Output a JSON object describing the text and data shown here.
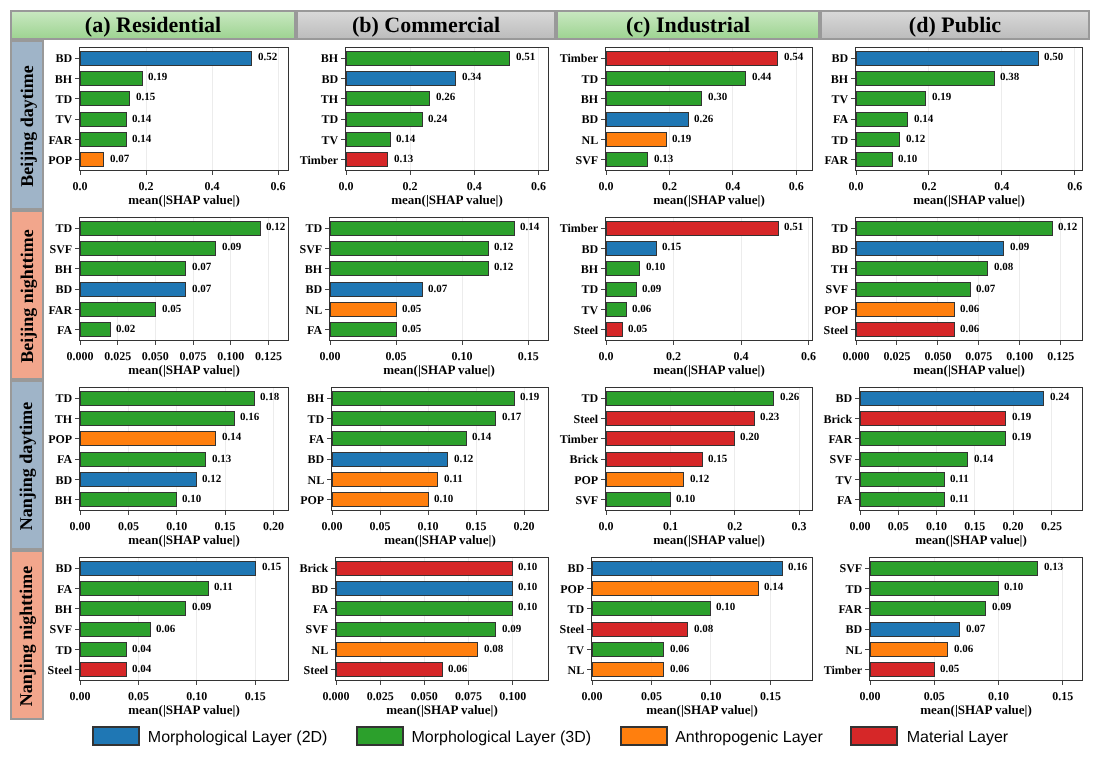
{
  "chart_data": [
    {
      "type": "bar",
      "orientation": "horizontal",
      "stacked": true,
      "title": "(a) Residential",
      "ylabel": "Beijing daytime",
      "xlabel": "mean(|SHAP value|)",
      "categories": [
        "BD",
        "BH",
        "TD",
        "TV",
        "FAR",
        "POP"
      ],
      "series": [
        {
          "color": "#1f77b4",
          "values": [
            0.52,
            null,
            null,
            null,
            null,
            null
          ],
          "value_labels": [
            "0.52",
            null,
            null,
            null,
            null,
            null
          ]
        },
        {
          "color": "#2ca02c",
          "values": [
            null,
            0.19,
            0.15,
            0.14,
            0.14,
            null
          ],
          "value_labels": [
            null,
            "0.19",
            "0.15",
            "0.14",
            "0.14",
            null
          ]
        },
        {
          "color": "#ff7f0e",
          "values": [
            null,
            null,
            null,
            null,
            null,
            0.07
          ],
          "value_labels": [
            null,
            null,
            null,
            null,
            null,
            "0.07"
          ]
        }
      ],
      "xlim": [
        0,
        0.63
      ],
      "xticks": [
        {
          "value": 0,
          "label": "0.0"
        },
        {
          "value": 0.2,
          "label": "0.2"
        },
        {
          "value": 0.4,
          "label": "0.4"
        },
        {
          "value": 0.6,
          "label": "0.6"
        }
      ],
      "grid": "x"
    },
    {
      "type": "bar",
      "orientation": "horizontal",
      "stacked": true,
      "title": "(b) Commercial",
      "xlabel": "mean(|SHAP value|)",
      "categories": [
        "BH",
        "BD",
        "TH",
        "TD",
        "TV",
        "Timber"
      ],
      "series": [
        {
          "color": "#1f77b4",
          "values": [
            null,
            0.34,
            null,
            null,
            null,
            null
          ],
          "value_labels": [
            null,
            "0.34",
            null,
            null,
            null,
            null
          ]
        },
        {
          "color": "#2ca02c",
          "values": [
            0.51,
            null,
            0.26,
            0.24,
            0.14,
            null
          ],
          "value_labels": [
            "0.51",
            null,
            "0.26",
            "0.24",
            "0.14",
            null
          ]
        },
        {
          "color": "#d62728",
          "values": [
            null,
            null,
            null,
            null,
            null,
            0.13
          ],
          "value_labels": [
            null,
            null,
            null,
            null,
            null,
            "0.13"
          ]
        }
      ],
      "xlim": [
        0,
        0.63
      ],
      "xticks": [
        {
          "value": 0,
          "label": "0.0"
        },
        {
          "value": 0.2,
          "label": "0.2"
        },
        {
          "value": 0.4,
          "label": "0.4"
        },
        {
          "value": 0.6,
          "label": "0.6"
        }
      ],
      "grid": "x"
    },
    {
      "type": "bar",
      "orientation": "horizontal",
      "stacked": true,
      "title": "(c) Industrial",
      "xlabel": "mean(|SHAP value|)",
      "categories": [
        "Timber",
        "TD",
        "BH",
        "BD",
        "NL",
        "SVF"
      ],
      "series": [
        {
          "color": "#1f77b4",
          "values": [
            null,
            null,
            null,
            0.26,
            null,
            null
          ],
          "value_labels": [
            null,
            null,
            null,
            "0.26",
            null,
            null
          ]
        },
        {
          "color": "#2ca02c",
          "values": [
            null,
            0.44,
            0.3,
            null,
            null,
            0.13
          ],
          "value_labels": [
            null,
            "0.44",
            "0.30",
            null,
            null,
            "0.13"
          ]
        },
        {
          "color": "#ff7f0e",
          "values": [
            null,
            null,
            null,
            null,
            0.19,
            null
          ],
          "value_labels": [
            null,
            null,
            null,
            null,
            "0.19",
            null
          ]
        },
        {
          "color": "#d62728",
          "values": [
            0.54,
            null,
            null,
            null,
            null,
            null
          ],
          "value_labels": [
            "0.54",
            null,
            null,
            null,
            null,
            null
          ]
        }
      ],
      "xlim": [
        0,
        0.65
      ],
      "xticks": [
        {
          "value": 0,
          "label": "0.0"
        },
        {
          "value": 0.2,
          "label": "0.2"
        },
        {
          "value": 0.4,
          "label": "0.4"
        },
        {
          "value": 0.6,
          "label": "0.6"
        }
      ],
      "grid": "x"
    },
    {
      "type": "bar",
      "orientation": "horizontal",
      "stacked": true,
      "title": "(d) Public",
      "xlabel": "mean(|SHAP value|)",
      "categories": [
        "BD",
        "BH",
        "TV",
        "FA",
        "TD",
        "FAR"
      ],
      "series": [
        {
          "color": "#1f77b4",
          "values": [
            0.5,
            null,
            null,
            null,
            null,
            null
          ],
          "value_labels": [
            "0.50",
            null,
            null,
            null,
            null,
            null
          ]
        },
        {
          "color": "#2ca02c",
          "values": [
            null,
            0.38,
            0.19,
            0.14,
            0.12,
            0.1
          ],
          "value_labels": [
            null,
            "0.38",
            "0.19",
            "0.14",
            "0.12",
            "0.10"
          ]
        }
      ],
      "xlim": [
        0,
        0.62
      ],
      "xticks": [
        {
          "value": 0,
          "label": "0.0"
        },
        {
          "value": 0.2,
          "label": "0.2"
        },
        {
          "value": 0.4,
          "label": "0.4"
        },
        {
          "value": 0.6,
          "label": "0.6"
        }
      ],
      "grid": "x"
    },
    {
      "type": "bar",
      "orientation": "horizontal",
      "stacked": true,
      "ylabel": "Beijing nighttime",
      "xlabel": "mean(|SHAP value|)",
      "categories": [
        "TD",
        "SVF",
        "BH",
        "BD",
        "FAR",
        "FA"
      ],
      "series": [
        {
          "color": "#1f77b4",
          "values": [
            null,
            null,
            null,
            0.07,
            null,
            null
          ],
          "value_labels": [
            null,
            null,
            null,
            "0.07",
            null,
            null
          ]
        },
        {
          "color": "#2ca02c",
          "values": [
            0.12,
            0.09,
            0.07,
            null,
            0.05,
            0.02
          ],
          "value_labels": [
            "0.12",
            "0.09",
            "0.07",
            null,
            "0.05",
            "0.02"
          ]
        }
      ],
      "xlim": [
        0,
        0.138
      ],
      "xticks": [
        {
          "value": 0,
          "label": "0.000"
        },
        {
          "value": 0.025,
          "label": "0.025"
        },
        {
          "value": 0.05,
          "label": "0.050"
        },
        {
          "value": 0.075,
          "label": "0.075"
        },
        {
          "value": 0.1,
          "label": "0.100"
        },
        {
          "value": 0.125,
          "label": "0.125"
        }
      ],
      "grid": "x"
    },
    {
      "type": "bar",
      "orientation": "horizontal",
      "stacked": true,
      "xlabel": "mean(|SHAP value|)",
      "categories": [
        "TD",
        "SVF",
        "BH",
        "BD",
        "NL",
        "FA"
      ],
      "series": [
        {
          "color": "#1f77b4",
          "values": [
            null,
            null,
            null,
            0.07,
            null,
            null
          ],
          "value_labels": [
            null,
            null,
            null,
            "0.07",
            null,
            null
          ]
        },
        {
          "color": "#2ca02c",
          "values": [
            0.14,
            0.12,
            0.12,
            null,
            null,
            0.05
          ],
          "value_labels": [
            "0.14",
            "0.12",
            "0.12",
            null,
            null,
            "0.05"
          ]
        },
        {
          "color": "#ff7f0e",
          "values": [
            null,
            null,
            null,
            null,
            0.05,
            null
          ],
          "value_labels": [
            null,
            null,
            null,
            null,
            "0.05",
            null
          ]
        }
      ],
      "xlim": [
        0,
        0.165
      ],
      "xticks": [
        {
          "value": 0,
          "label": "0.00"
        },
        {
          "value": 0.05,
          "label": "0.05"
        },
        {
          "value": 0.1,
          "label": "0.10"
        },
        {
          "value": 0.15,
          "label": "0.15"
        }
      ],
      "grid": "x"
    },
    {
      "type": "bar",
      "orientation": "horizontal",
      "stacked": true,
      "xlabel": "mean(|SHAP value|)",
      "categories": [
        "Timber",
        "BD",
        "BH",
        "TD",
        "TV",
        "Steel"
      ],
      "series": [
        {
          "color": "#1f77b4",
          "values": [
            null,
            0.15,
            null,
            null,
            null,
            null
          ],
          "value_labels": [
            null,
            "0.15",
            null,
            null,
            null,
            null
          ]
        },
        {
          "color": "#2ca02c",
          "values": [
            null,
            null,
            0.1,
            0.09,
            0.06,
            null
          ],
          "value_labels": [
            null,
            null,
            "0.10",
            "0.09",
            "0.06",
            null
          ]
        },
        {
          "color": "#d62728",
          "values": [
            0.51,
            null,
            null,
            null,
            null,
            0.05
          ],
          "value_labels": [
            "0.51",
            null,
            null,
            null,
            null,
            "0.05"
          ]
        }
      ],
      "xlim": [
        0,
        0.61
      ],
      "xticks": [
        {
          "value": 0,
          "label": "0.0"
        },
        {
          "value": 0.2,
          "label": "0.2"
        },
        {
          "value": 0.4,
          "label": "0.4"
        },
        {
          "value": 0.6,
          "label": "0.6"
        }
      ],
      "grid": "x"
    },
    {
      "type": "bar",
      "orientation": "horizontal",
      "stacked": true,
      "xlabel": "mean(|SHAP value|)",
      "categories": [
        "TD",
        "BD",
        "TH",
        "SVF",
        "POP",
        "Steel"
      ],
      "series": [
        {
          "color": "#1f77b4",
          "values": [
            null,
            0.09,
            null,
            null,
            null,
            null
          ],
          "value_labels": [
            null,
            "0.09",
            null,
            null,
            null,
            null
          ]
        },
        {
          "color": "#2ca02c",
          "values": [
            0.12,
            null,
            0.08,
            0.07,
            null,
            null
          ],
          "value_labels": [
            "0.12",
            null,
            "0.08",
            "0.07",
            null,
            null
          ]
        },
        {
          "color": "#ff7f0e",
          "values": [
            null,
            null,
            null,
            null,
            0.06,
            null
          ],
          "value_labels": [
            null,
            null,
            null,
            null,
            "0.06",
            null
          ]
        },
        {
          "color": "#d62728",
          "values": [
            null,
            null,
            null,
            null,
            null,
            0.06
          ],
          "value_labels": [
            null,
            null,
            null,
            null,
            null,
            "0.06"
          ]
        }
      ],
      "xlim": [
        0,
        0.138
      ],
      "xticks": [
        {
          "value": 0,
          "label": "0.000"
        },
        {
          "value": 0.025,
          "label": "0.025"
        },
        {
          "value": 0.05,
          "label": "0.050"
        },
        {
          "value": 0.075,
          "label": "0.075"
        },
        {
          "value": 0.1,
          "label": "0.100"
        },
        {
          "value": 0.125,
          "label": "0.125"
        }
      ],
      "grid": "x"
    },
    {
      "type": "bar",
      "orientation": "horizontal",
      "stacked": true,
      "ylabel": "Nanjing daytime",
      "xlabel": "mean(|SHAP value|)",
      "categories": [
        "TD",
        "TH",
        "POP",
        "FA",
        "BD",
        "BH"
      ],
      "series": [
        {
          "color": "#1f77b4",
          "values": [
            null,
            null,
            null,
            null,
            0.12,
            null
          ],
          "value_labels": [
            null,
            null,
            null,
            null,
            "0.12",
            null
          ]
        },
        {
          "color": "#2ca02c",
          "values": [
            0.18,
            0.16,
            null,
            0.13,
            null,
            0.1
          ],
          "value_labels": [
            "0.18",
            "0.16",
            null,
            "0.13",
            null,
            "0.10"
          ]
        },
        {
          "color": "#ff7f0e",
          "values": [
            null,
            null,
            0.14,
            null,
            null,
            null
          ],
          "value_labels": [
            null,
            null,
            "0.14",
            null,
            null,
            null
          ]
        }
      ],
      "xlim": [
        0,
        0.215
      ],
      "xticks": [
        {
          "value": 0,
          "label": "0.00"
        },
        {
          "value": 0.05,
          "label": "0.05"
        },
        {
          "value": 0.1,
          "label": "0.10"
        },
        {
          "value": 0.15,
          "label": "0.15"
        },
        {
          "value": 0.2,
          "label": "0.20"
        }
      ],
      "grid": "x"
    },
    {
      "type": "bar",
      "orientation": "horizontal",
      "stacked": true,
      "xlabel": "mean(|SHAP value|)",
      "categories": [
        "BH",
        "TD",
        "FA",
        "BD",
        "NL",
        "POP"
      ],
      "series": [
        {
          "color": "#1f77b4",
          "values": [
            null,
            null,
            null,
            0.12,
            null,
            null
          ],
          "value_labels": [
            null,
            null,
            null,
            "0.12",
            null,
            null
          ]
        },
        {
          "color": "#2ca02c",
          "values": [
            0.19,
            0.17,
            0.14,
            null,
            null,
            null
          ],
          "value_labels": [
            "0.19",
            "0.17",
            "0.14",
            null,
            null,
            null
          ]
        },
        {
          "color": "#ff7f0e",
          "values": [
            null,
            null,
            null,
            null,
            0.11,
            0.1
          ],
          "value_labels": [
            null,
            null,
            null,
            null,
            "0.11",
            "0.10"
          ]
        }
      ],
      "xlim": [
        0,
        0.225
      ],
      "xticks": [
        {
          "value": 0,
          "label": "0.00"
        },
        {
          "value": 0.05,
          "label": "0.05"
        },
        {
          "value": 0.1,
          "label": "0.10"
        },
        {
          "value": 0.15,
          "label": "0.15"
        },
        {
          "value": 0.2,
          "label": "0.20"
        }
      ],
      "grid": "x"
    },
    {
      "type": "bar",
      "orientation": "horizontal",
      "stacked": true,
      "xlabel": "mean(|SHAP value|)",
      "categories": [
        "TD",
        "Steel",
        "Timber",
        "Brick",
        "POP",
        "SVF"
      ],
      "series": [
        {
          "color": "#2ca02c",
          "values": [
            0.26,
            null,
            null,
            null,
            null,
            0.1
          ],
          "value_labels": [
            "0.26",
            null,
            null,
            null,
            null,
            "0.10"
          ]
        },
        {
          "color": "#ff7f0e",
          "values": [
            null,
            null,
            null,
            null,
            0.12,
            null
          ],
          "value_labels": [
            null,
            null,
            null,
            null,
            "0.12",
            null
          ]
        },
        {
          "color": "#d62728",
          "values": [
            null,
            0.23,
            0.2,
            0.15,
            null,
            null
          ],
          "value_labels": [
            null,
            "0.23",
            "0.20",
            "0.15",
            null,
            null
          ]
        }
      ],
      "xlim": [
        0,
        0.32
      ],
      "xticks": [
        {
          "value": 0,
          "label": "0.0"
        },
        {
          "value": 0.1,
          "label": "0.1"
        },
        {
          "value": 0.2,
          "label": "0.2"
        },
        {
          "value": 0.3,
          "label": "0.3"
        }
      ],
      "grid": "x"
    },
    {
      "type": "bar",
      "orientation": "horizontal",
      "stacked": true,
      "xlabel": "mean(|SHAP value|)",
      "categories": [
        "BD",
        "Brick",
        "FAR",
        "SVF",
        "TV",
        "FA"
      ],
      "series": [
        {
          "color": "#1f77b4",
          "values": [
            0.24,
            null,
            null,
            null,
            null,
            null
          ],
          "value_labels": [
            "0.24",
            null,
            null,
            null,
            null,
            null
          ]
        },
        {
          "color": "#2ca02c",
          "values": [
            null,
            null,
            0.19,
            0.14,
            0.11,
            0.11
          ],
          "value_labels": [
            null,
            null,
            "0.19",
            "0.14",
            "0.11",
            "0.11"
          ]
        },
        {
          "color": "#d62728",
          "values": [
            null,
            0.19,
            null,
            null,
            null,
            null
          ],
          "value_labels": [
            null,
            "0.19",
            null,
            null,
            null,
            null
          ]
        }
      ],
      "xlim": [
        0,
        0.29
      ],
      "xticks": [
        {
          "value": 0,
          "label": "0.00"
        },
        {
          "value": 0.05,
          "label": "0.05"
        },
        {
          "value": 0.1,
          "label": "0.10"
        },
        {
          "value": 0.15,
          "label": "0.15"
        },
        {
          "value": 0.2,
          "label": "0.20"
        },
        {
          "value": 0.25,
          "label": "0.25"
        }
      ],
      "grid": "x"
    },
    {
      "type": "bar",
      "orientation": "horizontal",
      "stacked": true,
      "ylabel": "Nanjing nighttime",
      "xlabel": "mean(|SHAP value|)",
      "categories": [
        "BD",
        "FA",
        "BH",
        "SVF",
        "TD",
        "Steel"
      ],
      "series": [
        {
          "color": "#1f77b4",
          "values": [
            0.15,
            null,
            null,
            null,
            null,
            null
          ],
          "value_labels": [
            "0.15",
            null,
            null,
            null,
            null,
            null
          ]
        },
        {
          "color": "#2ca02c",
          "values": [
            null,
            0.11,
            0.09,
            0.06,
            0.04,
            null
          ],
          "value_labels": [
            null,
            "0.11",
            "0.09",
            "0.06",
            "0.04",
            null
          ]
        },
        {
          "color": "#d62728",
          "values": [
            null,
            null,
            null,
            null,
            null,
            0.04
          ],
          "value_labels": [
            null,
            null,
            null,
            null,
            null,
            "0.04"
          ]
        }
      ],
      "xlim": [
        0,
        0.178
      ],
      "xticks": [
        {
          "value": 0,
          "label": "0.00"
        },
        {
          "value": 0.05,
          "label": "0.05"
        },
        {
          "value": 0.1,
          "label": "0.10"
        },
        {
          "value": 0.15,
          "label": "0.15"
        }
      ],
      "grid": "x"
    },
    {
      "type": "bar",
      "orientation": "horizontal",
      "stacked": true,
      "xlabel": "mean(|SHAP value|)",
      "categories": [
        "Brick",
        "BD",
        "FA",
        "SVF",
        "NL",
        "Steel"
      ],
      "series": [
        {
          "color": "#1f77b4",
          "values": [
            null,
            0.1,
            null,
            null,
            null,
            null
          ],
          "value_labels": [
            null,
            "0.10",
            null,
            null,
            null,
            null
          ]
        },
        {
          "color": "#2ca02c",
          "values": [
            null,
            null,
            0.1,
            0.09,
            null,
            null
          ],
          "value_labels": [
            null,
            null,
            "0.10",
            "0.09",
            null,
            null
          ]
        },
        {
          "color": "#ff7f0e",
          "values": [
            null,
            null,
            null,
            null,
            0.08,
            null
          ],
          "value_labels": [
            null,
            null,
            null,
            null,
            "0.08",
            null
          ]
        },
        {
          "color": "#d62728",
          "values": [
            0.1,
            null,
            null,
            null,
            null,
            0.06
          ],
          "value_labels": [
            "0.10",
            null,
            null,
            null,
            null,
            "0.06"
          ]
        }
      ],
      "xlim": [
        0,
        0.12
      ],
      "xticks": [
        {
          "value": 0,
          "label": "0.000"
        },
        {
          "value": 0.025,
          "label": "0.025"
        },
        {
          "value": 0.05,
          "label": "0.050"
        },
        {
          "value": 0.075,
          "label": "0.075"
        },
        {
          "value": 0.1,
          "label": "0.100"
        }
      ],
      "grid": "x"
    },
    {
      "type": "bar",
      "orientation": "horizontal",
      "stacked": true,
      "xlabel": "mean(|SHAP value|)",
      "categories": [
        "BD",
        "POP",
        "TD",
        "Steel",
        "TV",
        "NL"
      ],
      "series": [
        {
          "color": "#1f77b4",
          "values": [
            0.16,
            null,
            null,
            null,
            null,
            null
          ],
          "value_labels": [
            "0.16",
            null,
            null,
            null,
            null,
            null
          ]
        },
        {
          "color": "#2ca02c",
          "values": [
            null,
            null,
            0.1,
            null,
            0.06,
            null
          ],
          "value_labels": [
            null,
            null,
            "0.10",
            null,
            "0.06",
            null
          ]
        },
        {
          "color": "#ff7f0e",
          "values": [
            null,
            0.14,
            null,
            null,
            null,
            0.06
          ],
          "value_labels": [
            null,
            "0.14",
            null,
            null,
            null,
            "0.06"
          ]
        },
        {
          "color": "#d62728",
          "values": [
            null,
            null,
            null,
            0.08,
            null,
            null
          ],
          "value_labels": [
            null,
            null,
            null,
            "0.08",
            null,
            null
          ]
        }
      ],
      "xlim": [
        0,
        0.185
      ],
      "xticks": [
        {
          "value": 0,
          "label": "0.00"
        },
        {
          "value": 0.05,
          "label": "0.05"
        },
        {
          "value": 0.1,
          "label": "0.10"
        },
        {
          "value": 0.15,
          "label": "0.15"
        }
      ],
      "grid": "x"
    },
    {
      "type": "bar",
      "orientation": "horizontal",
      "stacked": true,
      "xlabel": "mean(|SHAP value|)",
      "categories": [
        "SVF",
        "TD",
        "FAR",
        "BD",
        "NL",
        "Timber"
      ],
      "series": [
        {
          "name": "Morphological Layer (2D)",
          "color": "#1f77b4",
          "values": [
            null,
            null,
            null,
            0.07,
            null,
            null
          ],
          "value_labels": [
            null,
            null,
            null,
            "0.07",
            null,
            null
          ]
        },
        {
          "name": "Morphological Layer (3D)",
          "color": "#2ca02c",
          "values": [
            0.13,
            0.1,
            0.09,
            null,
            null,
            null
          ],
          "value_labels": [
            "0.13",
            "0.10",
            "0.09",
            null,
            null,
            null
          ]
        },
        {
          "name": "Anthropogenic Layer",
          "color": "#ff7f0e",
          "values": [
            null,
            null,
            null,
            null,
            0.06,
            null
          ],
          "value_labels": [
            null,
            null,
            null,
            null,
            "0.06",
            null
          ]
        },
        {
          "name": "Material Layer",
          "color": "#d62728",
          "values": [
            null,
            null,
            null,
            null,
            null,
            0.05
          ],
          "value_labels": [
            null,
            null,
            null,
            null,
            null,
            "0.05"
          ]
        }
      ],
      "xlim": [
        0,
        0.165
      ],
      "xticks": [
        {
          "value": 0,
          "label": "0.00"
        },
        {
          "value": 0.05,
          "label": "0.05"
        },
        {
          "value": 0.1,
          "label": "0.10"
        },
        {
          "value": 0.15,
          "label": "0.15"
        }
      ],
      "grid": "x",
      "legend": "bottom"
    }
  ]
}
